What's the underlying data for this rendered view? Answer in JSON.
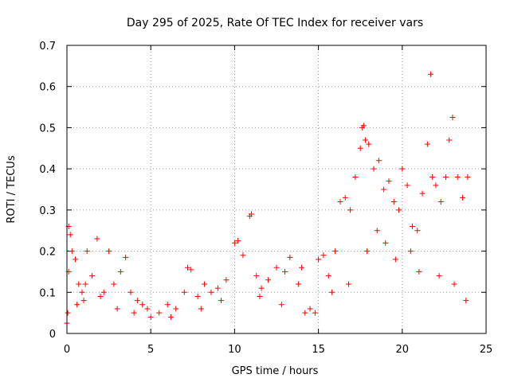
{
  "chart_data": {
    "type": "scatter",
    "title": "Day 295 of 2025, Rate Of TEC Index for receiver vars",
    "xlabel": "GPS time / hours",
    "ylabel": "ROTI / TECUs",
    "xlim": [
      0,
      25
    ],
    "ylim": [
      0,
      0.7
    ],
    "xticks": [
      0,
      5,
      10,
      15,
      20,
      25
    ],
    "yticks": [
      0,
      0.1,
      0.2,
      0.3,
      0.4,
      0.5,
      0.6,
      0.7
    ],
    "xtick_labels": [
      "0",
      "5",
      "10",
      "15",
      "20",
      "25"
    ],
    "ytick_labels": [
      "0",
      "0.1",
      "0.2",
      "0.3",
      "0.4",
      "0.5",
      "0.6",
      "0.7"
    ],
    "grid": true,
    "marker": "plus",
    "color": "#ff0000",
    "series": [
      {
        "name": "ROTI",
        "x": [
          0.0,
          0.1,
          0.1,
          0.2,
          0.3,
          0.5,
          0.7,
          0.9,
          1.0,
          1.2,
          1.5,
          1.8,
          2.2,
          2.5,
          2.8,
          3.2,
          3.5,
          3.8,
          4.2,
          4.5,
          4.8,
          5.0,
          5.5,
          6.0,
          6.5,
          7.0,
          7.2,
          7.4,
          7.8,
          8.2,
          8.6,
          9.0,
          9.5,
          10.0,
          10.2,
          10.5,
          10.9,
          11.0,
          11.3,
          11.6,
          12.0,
          12.5,
          13.0,
          13.3,
          13.8,
          14.0,
          14.5,
          14.8,
          15.0,
          15.3,
          15.6,
          16.0,
          16.3,
          16.6,
          16.9,
          17.2,
          17.5,
          17.6,
          17.7,
          17.8,
          18.0,
          18.3,
          18.6,
          18.9,
          19.2,
          19.5,
          19.8,
          20.0,
          20.3,
          20.6,
          20.9,
          21.2,
          21.5,
          21.7,
          21.8,
          22.0,
          22.3,
          22.6,
          22.8,
          23.0,
          23.3,
          23.6,
          23.9,
          0.05,
          0.6,
          1.1,
          2.0,
          3.0,
          4.0,
          6.2,
          8.0,
          9.2,
          11.5,
          12.8,
          14.2,
          15.8,
          16.8,
          17.9,
          18.5,
          19.0,
          19.6,
          20.5,
          21.0,
          22.2,
          23.1,
          23.8
        ],
        "y": [
          0.025,
          0.26,
          0.15,
          0.24,
          0.2,
          0.18,
          0.12,
          0.1,
          0.08,
          0.2,
          0.14,
          0.23,
          0.1,
          0.2,
          0.12,
          0.15,
          0.185,
          0.1,
          0.08,
          0.07,
          0.06,
          0.04,
          0.05,
          0.07,
          0.06,
          0.1,
          0.16,
          0.155,
          0.09,
          0.12,
          0.1,
          0.11,
          0.13,
          0.22,
          0.225,
          0.19,
          0.285,
          0.29,
          0.14,
          0.11,
          0.13,
          0.16,
          0.15,
          0.185,
          0.12,
          0.16,
          0.06,
          0.05,
          0.18,
          0.19,
          0.14,
          0.2,
          0.32,
          0.33,
          0.3,
          0.38,
          0.45,
          0.5,
          0.505,
          0.47,
          0.46,
          0.4,
          0.42,
          0.35,
          0.37,
          0.32,
          0.3,
          0.4,
          0.36,
          0.26,
          0.25,
          0.34,
          0.46,
          0.63,
          0.38,
          0.36,
          0.32,
          0.38,
          0.47,
          0.525,
          0.38,
          0.33,
          0.38,
          0.05,
          0.07,
          0.12,
          0.09,
          0.06,
          0.05,
          0.04,
          0.06,
          0.08,
          0.09,
          0.07,
          0.05,
          0.1,
          0.12,
          0.2,
          0.25,
          0.22,
          0.18,
          0.2,
          0.15,
          0.14,
          0.12,
          0.08
        ]
      }
    ]
  }
}
